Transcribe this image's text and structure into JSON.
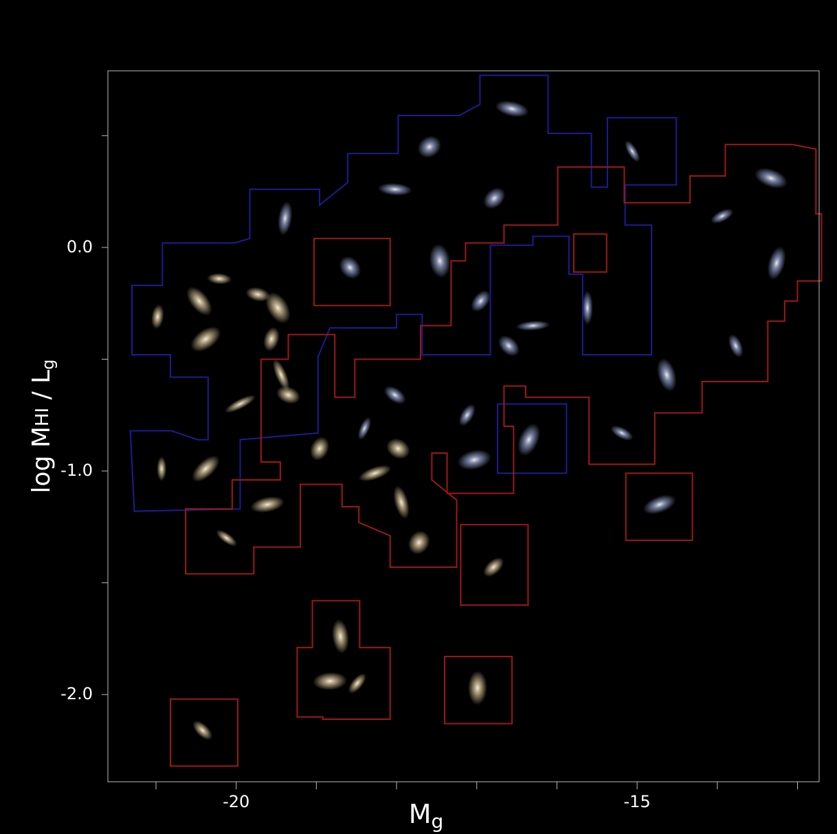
{
  "chart_data": {
    "type": "scatter",
    "x_label": [
      "M",
      "g"
    ],
    "y_label": [
      "log M",
      "HI",
      " / L",
      "g"
    ],
    "xlim": [
      -21.6,
      -12.73
    ],
    "ylim": [
      -2.39,
      0.79
    ],
    "xticks": [
      -20,
      -15
    ],
    "xminorticks": [
      -21,
      -19,
      -18,
      -17,
      -16,
      -14,
      -13
    ],
    "yticks": [
      {
        "value": 0,
        "label": "0.0"
      },
      {
        "value": -1,
        "label": "-1.0"
      },
      {
        "value": -2,
        "label": "-2.0"
      }
    ],
    "yminorticks": [
      0.5,
      -0.5,
      -1.5
    ],
    "background": "#000000",
    "axis_color": "#bdbdbd",
    "text_color": "#ffffff",
    "series": [
      {
        "color": "#d9c49a",
        "x": [
          -20.93,
          -20.38,
          -20.21,
          -20.46,
          -20.98,
          -20.38,
          -19.73,
          -19.48,
          -19.56,
          -19.95,
          -19.35,
          -19.44,
          -18.96,
          -18.27,
          -17.98,
          -17.94,
          -17.72,
          -19.61,
          -20.12,
          -18.7,
          -18.49,
          -18.83,
          -20.42,
          -16.99,
          -16.79
        ],
        "y": [
          -0.99,
          -0.99,
          -0.14,
          -0.24,
          -0.31,
          -0.41,
          -0.21,
          -0.27,
          -0.41,
          -0.7,
          -0.66,
          -0.57,
          -0.9,
          -1.01,
          -0.9,
          -1.14,
          -1.32,
          -1.15,
          -1.3,
          -1.74,
          -1.95,
          -1.94,
          -2.16,
          -1.97,
          -1.43
        ]
      },
      {
        "color": "#9aa8d6",
        "x": [
          -18.4,
          -14.72,
          -15.19,
          -14.63,
          -17.12,
          -17.03,
          -18.02,
          -17.46,
          -16.95,
          -16.3,
          -16.6,
          -15.62,
          -16.78,
          -18.02,
          -18.58,
          -19.39,
          -17.59,
          -16.56,
          -15.06,
          -13.26,
          -13.94,
          -13.33,
          -13.77,
          -16.35
        ],
        "y": [
          -0.81,
          -1.15,
          -0.83,
          -0.57,
          -0.75,
          -0.95,
          -0.66,
          -0.06,
          -0.24,
          -0.35,
          -0.44,
          -0.27,
          0.22,
          0.26,
          -0.09,
          0.13,
          0.45,
          0.62,
          0.43,
          -0.07,
          0.14,
          0.31,
          -0.44,
          -0.86
        ]
      }
    ],
    "outlines": [
      {
        "color": "#1c1c96",
        "x": [
          -21.3,
          -21.3,
          -20.92,
          -20.92,
          -20.02,
          -19.83,
          -19.83,
          -18.96,
          -18.96,
          -18.61,
          -18.61,
          -17.98,
          -17.98,
          -17.22,
          -16.96,
          -16.96,
          -16.11,
          -16.11,
          -15.57,
          -15.57,
          -15.37,
          -15.37,
          -14.51,
          -14.51,
          -15.15,
          -15.15,
          -14.82,
          -14.82,
          -15.68,
          -15.68,
          -15.85,
          -15.85,
          -16.3,
          -16.3,
          -16.83,
          -16.83,
          -17.68,
          -17.68,
          -18.0,
          -18.0,
          -18.83,
          -18.98,
          -18.98,
          -19.95,
          -19.95,
          -21.27,
          -21.32,
          -20.81,
          -20.48,
          -20.35,
          -20.35,
          -20.82,
          -20.82
        ],
        "y": [
          -0.48,
          -0.17,
          -0.17,
          0.02,
          0.02,
          0.04,
          0.26,
          0.26,
          0.19,
          0.29,
          0.42,
          0.42,
          0.59,
          0.59,
          0.64,
          0.77,
          0.77,
          0.51,
          0.51,
          0.27,
          0.27,
          0.58,
          0.58,
          0.28,
          0.28,
          0.1,
          0.1,
          -0.48,
          -0.48,
          -0.12,
          -0.12,
          0.05,
          0.05,
          0.01,
          0.01,
          -0.48,
          -0.48,
          -0.3,
          -0.3,
          -0.36,
          -0.36,
          -0.49,
          -0.83,
          -0.86,
          -1.17,
          -1.18,
          -0.82,
          -0.82,
          -0.86,
          -0.86,
          -0.58,
          -0.58,
          -0.48
        ]
      },
      {
        "color": "#1c1c96",
        "x": [
          -16.74,
          -15.88,
          -15.88,
          -16.74
        ],
        "y": [
          -0.7,
          -0.7,
          -1.01,
          -1.01
        ]
      },
      {
        "color": "#a01818",
        "x": [
          -20.63,
          -20.05,
          -20.05,
          -19.45,
          -19.45,
          -19.69,
          -19.69,
          -19.35,
          -19.35,
          -18.77,
          -18.77,
          -18.52,
          -18.52,
          -17.7,
          -17.7,
          -17.32,
          -17.32,
          -17.14,
          -17.14,
          -16.66,
          -16.66,
          -15.99,
          -15.99,
          -15.16,
          -15.16,
          -14.34,
          -14.34,
          -13.9,
          -13.9,
          -13.06,
          -12.77,
          -12.77,
          -12.7,
          -12.7,
          -13.0,
          -13.0,
          -13.16,
          -13.16,
          -13.37,
          -13.37,
          -14.19,
          -14.19,
          -14.78,
          -14.78,
          -15.6,
          -15.6,
          -16.39,
          -16.39,
          -16.66,
          -16.66,
          -16.54,
          -16.54,
          -17.37,
          -17.37,
          -17.56,
          -17.56,
          -17.25,
          -17.25,
          -18.08,
          -18.08,
          -18.47,
          -18.47,
          -18.68,
          -18.68,
          -19.2,
          -19.2,
          -19.78,
          -19.78,
          -20.63
        ],
        "y": [
          -1.17,
          -1.17,
          -1.04,
          -1.04,
          -0.96,
          -0.96,
          -0.5,
          -0.5,
          -0.39,
          -0.39,
          -0.67,
          -0.67,
          -0.5,
          -0.5,
          -0.35,
          -0.35,
          -0.06,
          -0.06,
          0.02,
          0.02,
          0.1,
          0.1,
          0.36,
          0.36,
          0.2,
          0.2,
          0.32,
          0.32,
          0.46,
          0.46,
          0.44,
          0.15,
          0.15,
          -0.15,
          -0.15,
          -0.24,
          -0.24,
          -0.33,
          -0.33,
          -0.6,
          -0.6,
          -0.74,
          -0.74,
          -0.97,
          -0.97,
          -0.67,
          -0.67,
          -0.62,
          -0.62,
          -0.8,
          -0.8,
          -1.1,
          -1.1,
          -0.92,
          -0.92,
          -1.04,
          -1.13,
          -1.43,
          -1.43,
          -1.29,
          -1.23,
          -1.16,
          -1.16,
          -1.06,
          -1.06,
          -1.34,
          -1.34,
          -1.46,
          -1.46
        ]
      },
      {
        "color": "#a01818",
        "x": [
          -19.03,
          -18.08,
          -18.08,
          -19.03
        ],
        "y": [
          0.04,
          0.04,
          -0.26,
          -0.26
        ]
      },
      {
        "color": "#a01818",
        "x": [
          -15.79,
          -15.38,
          -15.38,
          -15.79
        ],
        "y": [
          0.06,
          0.06,
          -0.11,
          -0.11
        ]
      },
      {
        "color": "#a01818",
        "x": [
          -15.14,
          -14.31,
          -14.31,
          -15.14
        ],
        "y": [
          -1.01,
          -1.01,
          -1.31,
          -1.31
        ]
      },
      {
        "color": "#a01818",
        "x": [
          -17.2,
          -16.36,
          -16.36,
          -17.2
        ],
        "y": [
          -1.24,
          -1.24,
          -1.6,
          -1.6
        ]
      },
      {
        "color": "#a01818",
        "x": [
          -17.4,
          -16.56,
          -16.56,
          -17.4
        ],
        "y": [
          -1.83,
          -1.83,
          -2.13,
          -2.13
        ]
      },
      {
        "color": "#a01818",
        "x": [
          -20.82,
          -19.98,
          -19.98,
          -20.82
        ],
        "y": [
          -2.02,
          -2.02,
          -2.32,
          -2.32
        ]
      },
      {
        "color": "#a01818",
        "x": [
          -19.05,
          -18.46,
          -18.46,
          -18.08,
          -18.08,
          -18.92,
          -18.92,
          -19.24,
          -19.24,
          -19.05
        ],
        "y": [
          -1.58,
          -1.58,
          -1.79,
          -1.79,
          -2.11,
          -2.11,
          -2.1,
          -2.1,
          -1.79,
          -1.79
        ]
      }
    ]
  }
}
